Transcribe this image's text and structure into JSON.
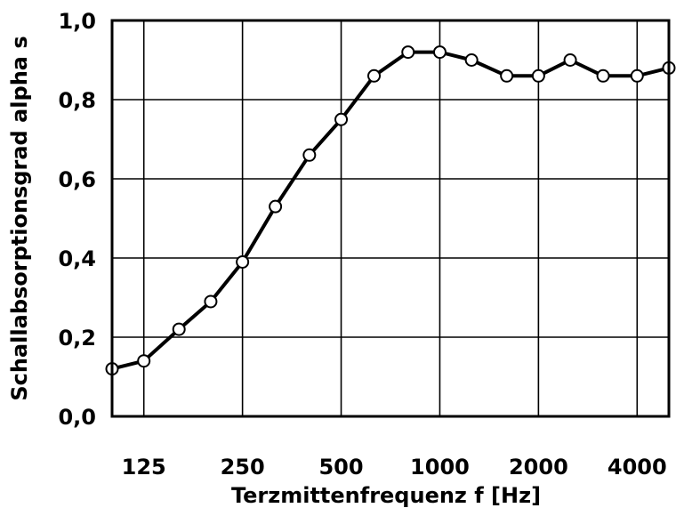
{
  "chart_data": {
    "type": "line",
    "title": "",
    "xlabel": "Terzmittenfrequenz f [Hz]",
    "ylabel": "Schallabsorptionsgrad alpha s",
    "x_scale": "log",
    "grid": true,
    "legend": "none",
    "line_color": "#000000",
    "marker_fill": "#ffffff",
    "x_tick_labels": [
      "125",
      "250",
      "500",
      "1000",
      "2000",
      "4000"
    ],
    "x_tick_values": [
      125,
      250,
      500,
      1000,
      2000,
      4000
    ],
    "y_tick_labels": [
      "0,0",
      "0,2",
      "0,4",
      "0,6",
      "0,8",
      "1,0"
    ],
    "y_tick_values": [
      0,
      0.2,
      0.4,
      0.6,
      0.8,
      1.0
    ],
    "xlim": [
      100,
      5000
    ],
    "ylim": [
      0,
      1.0
    ],
    "series": [
      {
        "x": [
          100,
          125,
          160,
          200,
          250,
          315,
          400,
          500,
          630,
          800,
          1000,
          1250,
          1600,
          2000,
          2500,
          3150,
          4000,
          5000
        ],
        "y": [
          0.12,
          0.14,
          0.22,
          0.29,
          0.39,
          0.53,
          0.66,
          0.75,
          0.86,
          0.92,
          0.92,
          0.9,
          0.86,
          0.86,
          0.9,
          0.86,
          0.86,
          0.88
        ]
      }
    ]
  }
}
